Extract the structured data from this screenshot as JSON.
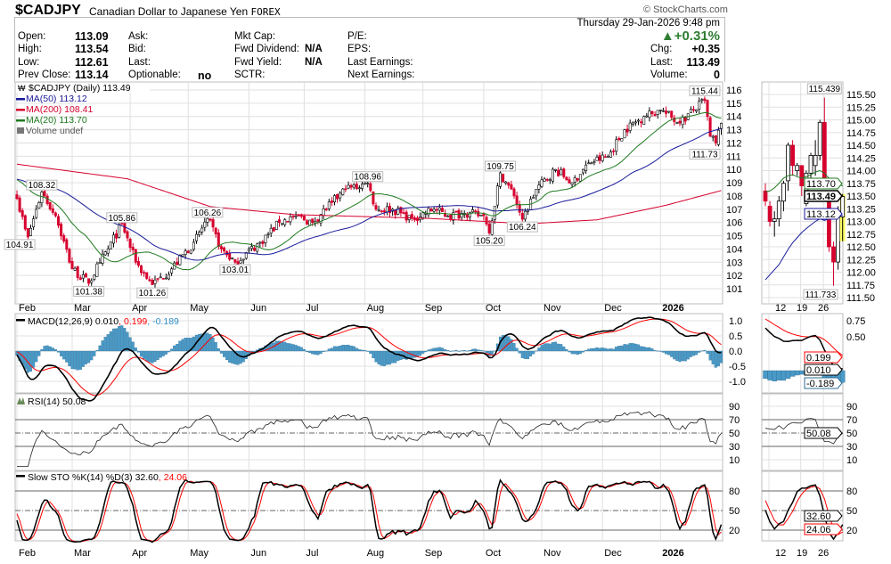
{
  "header": {
    "symbol": "$CADJPY",
    "name": "Canadian Dollar to Japanese Yen",
    "exchange": "FOREX",
    "watermark": "© StockCharts.com",
    "datetime": "Thursday  29-Jan-2026  9:48 pm",
    "change_pct": "+0.31%",
    "up_arrow": "▲",
    "chg_label": "Chg:",
    "chg_value": "+0.35",
    "last_label": "Last:",
    "last_value": "113.49",
    "volume_label": "Volume:",
    "volume_value": "0",
    "fields": [
      {
        "label": "Open:",
        "value": "113.09"
      },
      {
        "label": "High:",
        "value": "113.54"
      },
      {
        "label": "Low:",
        "value": "112.61"
      },
      {
        "label": "Prev Close:",
        "value": "113.14"
      }
    ],
    "fields2": [
      {
        "label": "Ask:",
        "value": ""
      },
      {
        "label": "Bid:",
        "value": ""
      },
      {
        "label": "Last:",
        "value": ""
      },
      {
        "label": "Optionable:",
        "value": "no"
      }
    ],
    "fields3": [
      {
        "label": "Mkt Cap:",
        "value": ""
      },
      {
        "label": "Fwd Dividend:",
        "value": "N/A"
      },
      {
        "label": "Fwd Yield:",
        "value": "N/A"
      },
      {
        "label": "SCTR:",
        "value": ""
      }
    ],
    "fields4": [
      {
        "label": "P/E:"
      },
      {
        "label": "EPS:"
      },
      {
        "label": "Last Earnings:"
      },
      {
        "label": "Next Earnings:"
      }
    ]
  },
  "legend": {
    "price": "$CADJPY (Daily) 113.49",
    "ma50": "MA(50) 113.12",
    "ma200": "MA(200) 108.41",
    "ma20": "MA(20) 113.70",
    "volume": "Volume undef",
    "macd_name": "MACD(12,26,9) 0.010",
    "macd_signal": ", 0.199",
    "macd_hist": ", -0.189",
    "rsi": "RSI(14) 50.08",
    "sto_name": "Slow STO %K(14) %D(3) 32.60",
    "sto_d": ", 24.06"
  },
  "colors": {
    "up": "#ffffff",
    "down": "#d6002e",
    "ma50": "#1a1a9c",
    "ma200": "#d6002e",
    "ma20": "#1f7a1f",
    "macd": "#000000",
    "signal": "#ff0000",
    "hist": "#4a9ac8",
    "grid": "#e0e0e0",
    "pct": "#2e7d32"
  },
  "chart_data": {
    "type": "candlestick",
    "title": "$CADJPY (Daily)",
    "price_path": [
      [
        0,
        107.8
      ],
      [
        3,
        105.5
      ],
      [
        4,
        104.9
      ],
      [
        9,
        108.3
      ],
      [
        14,
        106.5
      ],
      [
        20,
        102.5
      ],
      [
        26,
        101.4
      ],
      [
        30,
        103
      ],
      [
        33,
        104
      ],
      [
        38,
        105.9
      ],
      [
        43,
        103
      ],
      [
        49,
        101.3
      ],
      [
        56,
        102.5
      ],
      [
        64,
        104.5
      ],
      [
        69,
        106.3
      ],
      [
        74,
        104
      ],
      [
        79,
        103
      ],
      [
        88,
        104.5
      ],
      [
        95,
        106
      ],
      [
        101,
        106.5
      ],
      [
        107,
        106
      ],
      [
        114,
        107.5
      ],
      [
        119,
        108.5
      ],
      [
        127,
        108.96
      ],
      [
        130,
        107
      ],
      [
        136,
        107
      ],
      [
        143,
        106.3
      ],
      [
        151,
        107
      ],
      [
        156,
        106.5
      ],
      [
        162,
        106.7
      ],
      [
        169,
        106.5
      ],
      [
        171,
        105.2
      ],
      [
        175,
        109.75
      ],
      [
        180,
        108
      ],
      [
        183,
        106.24
      ],
      [
        188,
        108.5
      ],
      [
        195,
        110
      ],
      [
        201,
        109
      ],
      [
        207,
        110.5
      ],
      [
        214,
        111
      ],
      [
        220,
        113
      ],
      [
        227,
        114
      ],
      [
        233,
        114.5
      ],
      [
        240,
        113.5
      ],
      [
        245,
        114.5
      ],
      [
        249,
        115.2
      ],
      [
        251,
        112.5
      ],
      [
        253,
        112
      ],
      [
        255,
        113.49
      ]
    ],
    "ma200_path": [
      [
        0,
        110.4
      ],
      [
        40,
        109.3
      ],
      [
        70,
        107.2
      ],
      [
        100,
        106.6
      ],
      [
        150,
        106.3
      ],
      [
        185,
        105.9
      ],
      [
        210,
        106.2
      ],
      [
        235,
        107.3
      ],
      [
        255,
        108.41
      ]
    ],
    "price_axis": {
      "min": 101,
      "max": 116,
      "ticks": [
        "116",
        "115",
        "114",
        "113",
        "112",
        "111",
        "110",
        "109",
        "108",
        "107",
        "106",
        "105",
        "104",
        "103",
        "102",
        "101"
      ]
    },
    "months": [
      "Feb",
      "Mar",
      "Apr",
      "May",
      "Jun",
      "Jul",
      "Aug",
      "Sep",
      "Oct",
      "Nov",
      "Dec",
      "2026"
    ],
    "month_days": [
      0,
      20,
      41,
      62,
      84,
      104,
      126,
      147,
      169,
      190,
      212,
      233
    ],
    "annotations": [
      {
        "t": 249,
        "v": 115.44,
        "text": "115.44",
        "pos": "above"
      },
      {
        "t": 253,
        "v": 111.73,
        "text": "111.73",
        "pos": "below"
      },
      {
        "t": 175,
        "v": 109.75,
        "text": "109.75",
        "pos": "above"
      },
      {
        "t": 127,
        "v": 108.96,
        "text": "108.96",
        "pos": "above"
      },
      {
        "t": 9,
        "v": 108.32,
        "text": "108.32",
        "pos": "above"
      },
      {
        "t": 69,
        "v": 106.26,
        "text": "106.26",
        "pos": "above"
      },
      {
        "t": 38,
        "v": 105.86,
        "text": "105.86",
        "pos": "above"
      },
      {
        "t": 183,
        "v": 106.24,
        "text": "106.24",
        "pos": "below"
      },
      {
        "t": 1,
        "v": 104.91,
        "text": "104.91",
        "pos": "below"
      },
      {
        "t": 171,
        "v": 105.2,
        "text": "105.20",
        "pos": "below"
      },
      {
        "t": 79,
        "v": 103.01,
        "text": "103.01",
        "pos": "below"
      },
      {
        "t": 26,
        "v": 101.38,
        "text": "101.38",
        "pos": "below"
      },
      {
        "t": 49,
        "v": 101.26,
        "text": "101.26",
        "pos": "below"
      }
    ],
    "macd_axis": [
      "1.0",
      "0.5",
      "0.0",
      "-0.5",
      "-1.0"
    ],
    "rsi_axis": [
      "90",
      "70",
      "50",
      "30",
      "10"
    ],
    "sto_axis": [
      "80",
      "50",
      "20"
    ],
    "mini": {
      "ohlc": [
        [
          113.6,
          113.75,
          113.3,
          113.4
        ],
        [
          113.3,
          113.4,
          112.9,
          113.0
        ],
        [
          113.0,
          113.2,
          112.7,
          113.05
        ],
        [
          113.05,
          113.5,
          112.9,
          113.4
        ],
        [
          113.4,
          113.8,
          113.2,
          113.75
        ],
        [
          113.8,
          114.55,
          113.6,
          114.5
        ],
        [
          114.5,
          114.6,
          113.9,
          114.1
        ],
        [
          114.0,
          114.15,
          113.9,
          114.1
        ],
        [
          114.1,
          114.1,
          113.5,
          113.7
        ],
        [
          113.35,
          114.0,
          113.3,
          113.95
        ],
        [
          113.95,
          114.35,
          113.7,
          114.3
        ],
        [
          114.1,
          114.6,
          113.9,
          114.3
        ],
        [
          114.3,
          115.0,
          114.2,
          114.95
        ],
        [
          114.95,
          115.439,
          113.7,
          113.7
        ],
        [
          113.4,
          113.55,
          112.4,
          112.5
        ],
        [
          112.5,
          112.6,
          111.733,
          112.2
        ],
        [
          112.2,
          113.3,
          112.05,
          113.14
        ],
        [
          113.09,
          113.54,
          112.61,
          113.49
        ]
      ],
      "ma20": [
        113.58,
        113.6,
        113.66,
        113.75,
        113.85,
        113.9,
        113.92,
        113.88,
        113.85,
        113.88,
        113.92,
        113.97,
        114.0,
        113.95,
        113.85,
        113.78,
        113.73,
        113.7
      ],
      "ma50": [
        111.85,
        111.95,
        112.05,
        112.15,
        112.3,
        112.45,
        112.58,
        112.68,
        112.78,
        112.86,
        112.93,
        113.0,
        113.05,
        113.02,
        113.05,
        113.08,
        113.1,
        113.12
      ],
      "price_ticks": [
        "115.50",
        "115.25",
        "115.00",
        "114.75",
        "114.50",
        "114.25",
        "114.00",
        "113.75",
        "113.50",
        "113.25",
        "113.00",
        "112.75",
        "112.50",
        "112.25",
        "112.00",
        "111.75",
        "111.50"
      ],
      "high_label": "115.439",
      "low_label": "111.733",
      "dates": [
        "12",
        "19",
        "26"
      ],
      "macd_ticks": [
        "0.75",
        "0.50"
      ],
      "tag_ma20": "113.70",
      "tag_last": "113.49",
      "tag_ma50": "113.12",
      "tag_signal": "0.199",
      "tag_macd": "0.010",
      "tag_hist": "-0.189",
      "tag_rsi": "50.08",
      "tag_k": "32.60",
      "tag_d": "24.06"
    }
  }
}
